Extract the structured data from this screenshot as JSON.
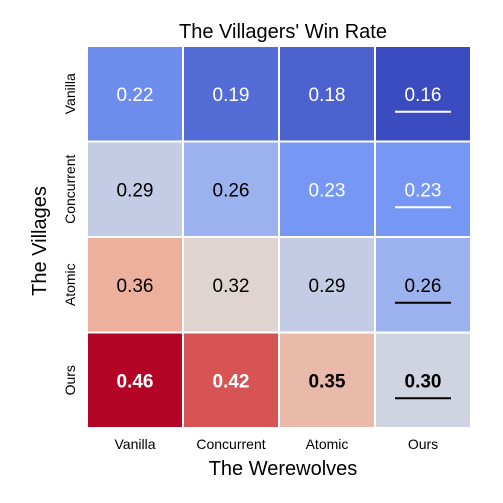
{
  "chart_data": {
    "type": "heatmap",
    "title": "The Villagers' Win Rate",
    "xlabel": "The Werewolves",
    "ylabel": "The Villages",
    "x_categories": [
      "Vanilla",
      "Concurrent",
      "Atomic",
      "Ours"
    ],
    "y_categories": [
      "Vanilla",
      "Concurrent",
      "Atomic",
      "Ours"
    ],
    "values": [
      [
        0.22,
        0.19,
        0.18,
        0.16
      ],
      [
        0.29,
        0.26,
        0.23,
        0.23
      ],
      [
        0.36,
        0.32,
        0.29,
        0.26
      ],
      [
        0.46,
        0.42,
        0.35,
        0.3
      ]
    ],
    "labels": [
      [
        "0.22",
        "0.19",
        "0.18",
        "0.16"
      ],
      [
        "0.29",
        "0.26",
        "0.23",
        "0.23"
      ],
      [
        "0.36",
        "0.32",
        "0.29",
        "0.26"
      ],
      [
        "0.46",
        "0.42",
        "0.35",
        "0.30"
      ]
    ],
    "bold": [
      [
        false,
        false,
        false,
        false
      ],
      [
        false,
        false,
        false,
        false
      ],
      [
        false,
        false,
        false,
        false
      ],
      [
        true,
        true,
        true,
        true
      ]
    ],
    "underlined": [
      [
        false,
        false,
        false,
        true
      ],
      [
        false,
        false,
        false,
        true
      ],
      [
        false,
        false,
        false,
        true
      ],
      [
        false,
        false,
        false,
        true
      ]
    ],
    "colormap": "coolwarm",
    "vmin": 0.16,
    "vmax": 0.46,
    "colorbar": false,
    "grid": false
  }
}
